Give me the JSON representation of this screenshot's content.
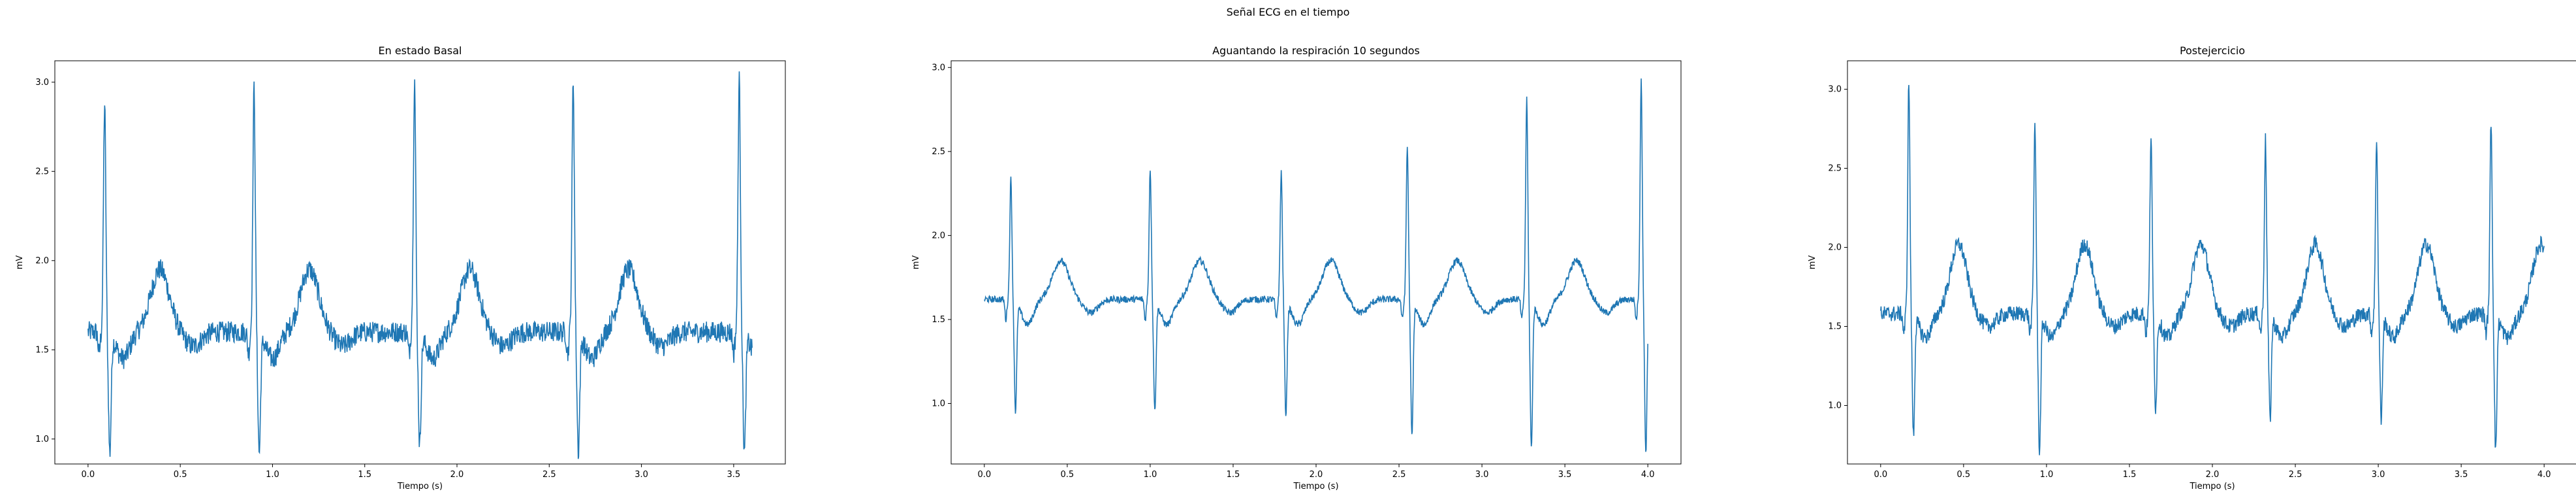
{
  "figure_title": "Señal ECG en el tiempo",
  "chart_data": [
    {
      "type": "line",
      "title": "En estado Basal",
      "xlabel": "Tiempo (s)",
      "ylabel": "mV",
      "xlim": [
        -0.18,
        3.78
      ],
      "ylim": [
        0.86,
        3.12
      ],
      "xticks": [
        "0.0",
        "0.5",
        "1.0",
        "1.5",
        "2.0",
        "2.5",
        "3.0",
        "3.5"
      ],
      "yticks": [
        "1.0",
        "1.5",
        "2.0",
        "2.5",
        "3.0"
      ],
      "grid": false,
      "color": "#1f77b4",
      "series": [
        {
          "x_start": 0.0,
          "x_end": 3.6,
          "beats": [
            {
              "peak_t": 0.09,
              "peak_v": 2.88,
              "trough_v": 0.94
            },
            {
              "peak_t": 0.9,
              "peak_v": 2.97,
              "trough_v": 0.94
            },
            {
              "peak_t": 1.77,
              "peak_v": 3.02,
              "trough_v": 0.98
            },
            {
              "peak_t": 2.63,
              "peak_v": 3.01,
              "trough_v": 0.95
            },
            {
              "peak_t": 3.53,
              "peak_v": 3.02,
              "trough_v": 0.94
            }
          ],
          "baseline": 1.6,
          "t_wave_v": 1.95,
          "noise": 0.06
        }
      ]
    },
    {
      "type": "line",
      "title": "Aguantando la respiración 10 segundos",
      "xlabel": "Tiempo (s)",
      "ylabel": "mV",
      "xlim": [
        -0.2,
        4.2
      ],
      "ylim": [
        0.64,
        3.04
      ],
      "xticks": [
        "0.0",
        "0.5",
        "1.0",
        "1.5",
        "2.0",
        "2.5",
        "3.0",
        "3.5",
        "4.0"
      ],
      "yticks": [
        "1.0",
        "1.5",
        "2.0",
        "2.5",
        "3.0"
      ],
      "grid": false,
      "color": "#1f77b4",
      "series": [
        {
          "x_start": 0.0,
          "x_end": 4.0,
          "beats": [
            {
              "peak_t": 0.16,
              "peak_v": 2.34,
              "trough_v": 0.97
            },
            {
              "peak_t": 1.0,
              "peak_v": 2.4,
              "trough_v": 0.97
            },
            {
              "peak_t": 1.79,
              "peak_v": 2.38,
              "trough_v": 0.95
            },
            {
              "peak_t": 2.55,
              "peak_v": 2.53,
              "trough_v": 0.82
            },
            {
              "peak_t": 3.27,
              "peak_v": 2.81,
              "trough_v": 0.75
            },
            {
              "peak_t": 3.96,
              "peak_v": 2.92,
              "trough_v": 0.73
            }
          ],
          "baseline": 1.62,
          "t_wave_v": 1.85,
          "noise": 0.02
        }
      ]
    },
    {
      "type": "line",
      "title": "Postejercicio",
      "xlabel": "Tiempo (s)",
      "ylabel": "mV",
      "xlim": [
        -0.2,
        4.2
      ],
      "ylim": [
        0.63,
        3.18
      ],
      "xticks": [
        "0.0",
        "0.5",
        "1.0",
        "1.5",
        "2.0",
        "2.5",
        "3.0",
        "3.5",
        "4.0"
      ],
      "yticks": [
        "1.0",
        "1.5",
        "2.0",
        "2.5",
        "3.0"
      ],
      "grid": false,
      "color": "#1f77b4",
      "series": [
        {
          "x_start": 0.0,
          "x_end": 4.0,
          "beats": [
            {
              "peak_t": 0.17,
              "peak_v": 3.06,
              "trough_v": 0.83
            },
            {
              "peak_t": 0.93,
              "peak_v": 2.8,
              "trough_v": 0.72
            },
            {
              "peak_t": 1.63,
              "peak_v": 2.72,
              "trough_v": 1.0
            },
            {
              "peak_t": 2.32,
              "peak_v": 2.68,
              "trough_v": 0.93
            },
            {
              "peak_t": 2.99,
              "peak_v": 2.7,
              "trough_v": 0.92
            },
            {
              "peak_t": 3.68,
              "peak_v": 2.81,
              "trough_v": 0.72
            }
          ],
          "baseline": 1.58,
          "t_wave_v": 2.02,
          "noise": 0.05
        }
      ]
    }
  ]
}
